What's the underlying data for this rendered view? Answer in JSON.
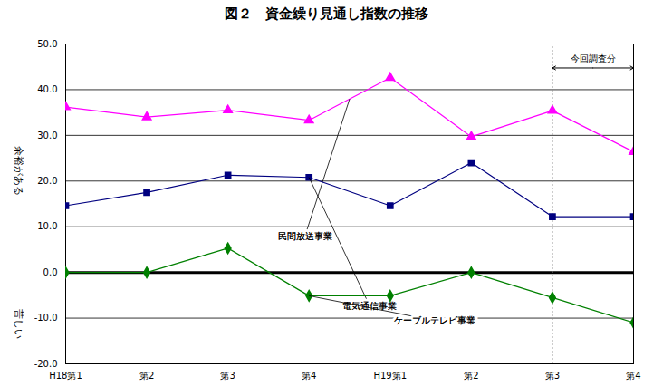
{
  "chart_data": {
    "type": "line",
    "title": "図２　資金繰り見通し指数の推移",
    "categories": [
      "H18第1",
      "第2",
      "第3",
      "第4",
      "H19第1",
      "第2",
      "第3",
      "第4"
    ],
    "series": [
      {
        "name": "民間放送事業",
        "color": "#ff00ff",
        "marker": "triangle",
        "values": [
          36.2,
          34.0,
          35.5,
          33.3,
          42.6,
          29.7,
          35.4,
          26.4
        ]
      },
      {
        "name": "電気通信事業",
        "color": "#000080",
        "marker": "square",
        "values": [
          14.6,
          17.5,
          21.3,
          20.8,
          14.6,
          24.0,
          12.2,
          12.2
        ]
      },
      {
        "name": "ケーブルテレビ事業",
        "color": "#008000",
        "marker": "diamond",
        "values": [
          0.0,
          0.0,
          5.3,
          -5.1,
          -5.1,
          0.0,
          -5.5,
          -11.0
        ]
      }
    ],
    "ylim": [
      -20,
      50
    ],
    "yticks": [
      {
        "value": -20,
        "label": "-20.0"
      },
      {
        "value": -10,
        "label": "-10.0"
      },
      {
        "value": 0,
        "label": "0.0"
      },
      {
        "value": 10,
        "label": "10.0"
      },
      {
        "value": 20,
        "label": "20.0"
      },
      {
        "value": 30,
        "label": "30.0"
      },
      {
        "value": 40,
        "label": "40.0"
      },
      {
        "value": 50,
        "label": "50.0"
      }
    ],
    "grid": true,
    "annotations": [
      {
        "text": "今回調査分"
      },
      {
        "text": "余裕がある"
      },
      {
        "text": "苦しい"
      }
    ]
  }
}
